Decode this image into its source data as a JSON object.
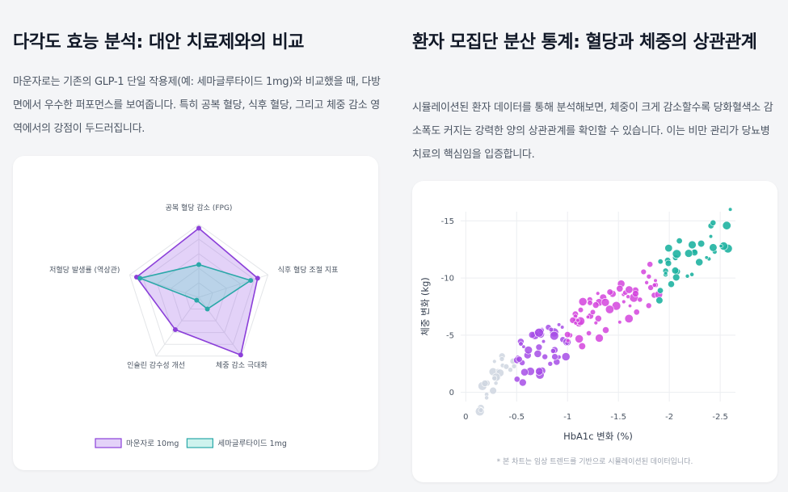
{
  "left": {
    "title": "다각도 효능 분석: 대안 치료제와의 비교",
    "description": "마운자로는 기존의 GLP-1 단일 작용제(예: 세마글루타이드 1mg)와 비교했을 때, 다방면에서 우수한 퍼포먼스를 보여줍니다. 특히 공복 혈당, 식후 혈당, 그리고 체중 감소 영역에서의 강점이 두드러집니다."
  },
  "right": {
    "title": "환자 모집단 분산 통계: 혈당과 체중의 상관관계",
    "description": "시뮬레이션된 환자 데이터를 통해 분석해보면, 체중이 크게 감소할수록 당화혈색소 감소폭도 커지는 강력한 양의 상관관계를 확인할 수 있습니다. 이는 비만 관리가 당뇨병 치료의 핵심임을 입증합니다.",
    "footnote": "* 본 차트는 임상 트렌드를 기반으로 시뮬레이션된 데이터입니다."
  },
  "chart_data": [
    {
      "type": "radar",
      "axes": [
        "공복 혈당 감소 (FPG)",
        "식후 혈당 조절 지표",
        "체중 감소 극대화",
        "인슐린 감수성 개선",
        "저혈당 발생률 (역상관)"
      ],
      "range": [
        0,
        100
      ],
      "series": [
        {
          "name": "마운자로 10mg",
          "color": "#8b3fd9",
          "fill": "rgba(155,93,229,0.28)",
          "values": [
            95,
            85,
            98,
            55,
            90
          ]
        },
        {
          "name": "세마글루타이드 1mg",
          "color": "#2aa8a8",
          "fill": "rgba(94,214,200,0.30)",
          "values": [
            45,
            75,
            20,
            5,
            85
          ]
        }
      ],
      "legend_position": "bottom"
    },
    {
      "type": "scatter",
      "xlabel": "HbA1c 변화 (%)",
      "ylabel": "체중 변화 (kg)",
      "x_ticks": [
        "0",
        "-0.5",
        "-1",
        "-1.5",
        "-2",
        "-2.5"
      ],
      "y_ticks": [
        "-15",
        "-10",
        "-5",
        "0"
      ],
      "xlim": [
        0.05,
        -2.65
      ],
      "ylim": [
        0.8,
        -15.8
      ],
      "grid": true
    }
  ]
}
